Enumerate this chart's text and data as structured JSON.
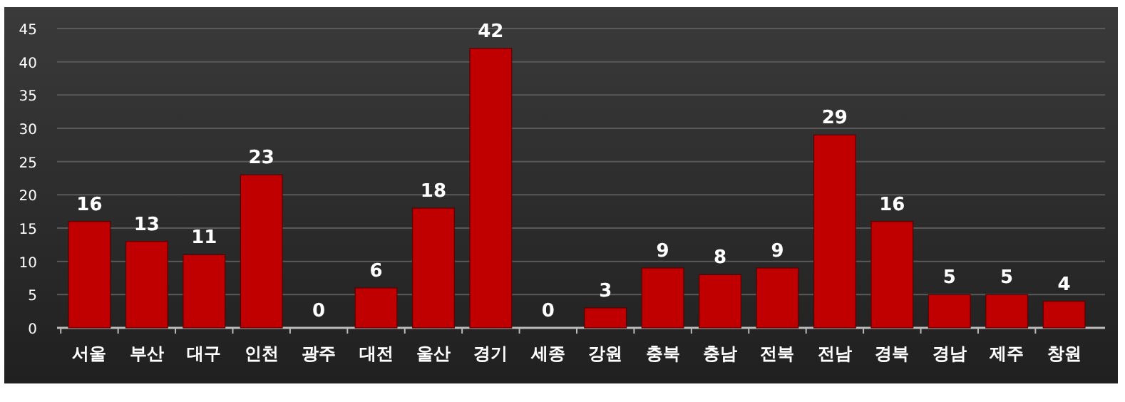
{
  "chart_data": {
    "type": "bar",
    "categories": [
      "서울",
      "부산",
      "대구",
      "인천",
      "광주",
      "대전",
      "울산",
      "경기",
      "세종",
      "강원",
      "충북",
      "충남",
      "전북",
      "전남",
      "경북",
      "경남",
      "제주",
      "창원"
    ],
    "values": [
      16,
      13,
      11,
      23,
      0,
      6,
      18,
      42,
      0,
      3,
      9,
      8,
      9,
      29,
      16,
      5,
      5,
      4
    ],
    "color": "#c00000",
    "ylim": [
      0,
      45
    ],
    "yticks": [
      0,
      5,
      10,
      15,
      20,
      25,
      30,
      35,
      40,
      45
    ],
    "grid": "y",
    "data_labels": true
  }
}
